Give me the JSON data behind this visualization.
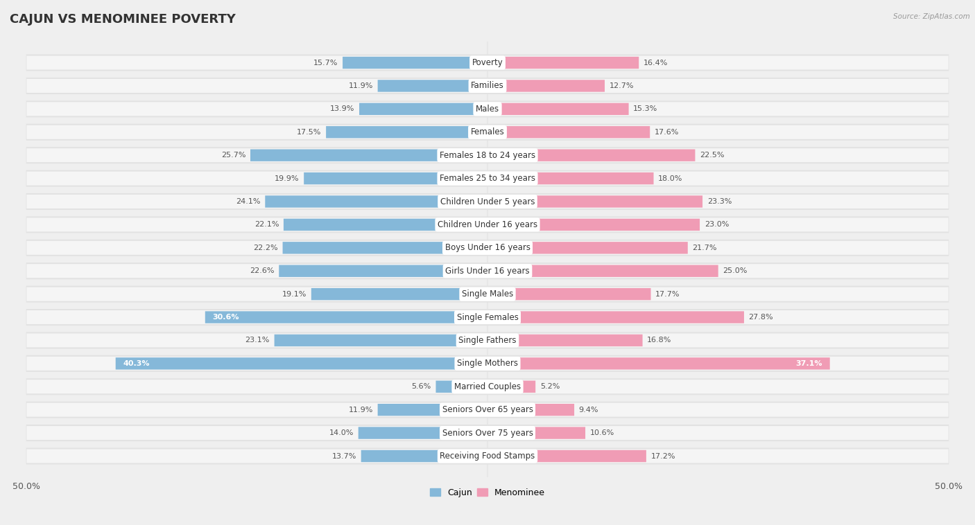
{
  "title": "CAJUN VS MENOMINEE POVERTY",
  "source": "Source: ZipAtlas.com",
  "categories": [
    "Poverty",
    "Families",
    "Males",
    "Females",
    "Females 18 to 24 years",
    "Females 25 to 34 years",
    "Children Under 5 years",
    "Children Under 16 years",
    "Boys Under 16 years",
    "Girls Under 16 years",
    "Single Males",
    "Single Females",
    "Single Fathers",
    "Single Mothers",
    "Married Couples",
    "Seniors Over 65 years",
    "Seniors Over 75 years",
    "Receiving Food Stamps"
  ],
  "cajun": [
    15.7,
    11.9,
    13.9,
    17.5,
    25.7,
    19.9,
    24.1,
    22.1,
    22.2,
    22.6,
    19.1,
    30.6,
    23.1,
    40.3,
    5.6,
    11.9,
    14.0,
    13.7
  ],
  "menominee": [
    16.4,
    12.7,
    15.3,
    17.6,
    22.5,
    18.0,
    23.3,
    23.0,
    21.7,
    25.0,
    17.7,
    27.8,
    16.8,
    37.1,
    5.2,
    9.4,
    10.6,
    17.2
  ],
  "cajun_color": "#85b8d9",
  "menominee_color": "#f09cb5",
  "highlight_cajun": [
    11,
    13
  ],
  "highlight_menominee": [
    13
  ],
  "max_val": 50.0,
  "bg_color": "#efefef",
  "row_bg_color": "#e2e2e2",
  "bar_inner_bg": "#ffffff",
  "title_fontsize": 13,
  "label_fontsize": 8.5,
  "value_fontsize": 8.0,
  "axis_tick_fontsize": 9
}
